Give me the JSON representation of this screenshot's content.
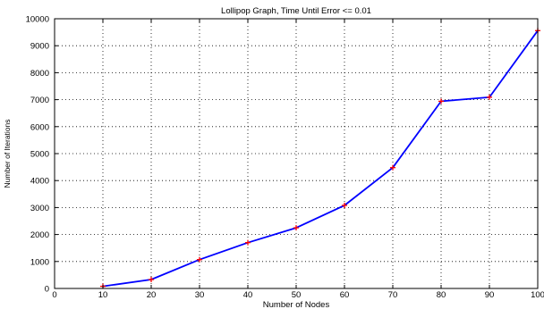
{
  "chart_data": {
    "type": "line",
    "title": "Lollipop Graph, Time Until Error <= 0.01",
    "xlabel": "Number of Nodes",
    "ylabel": "Number of Iterations",
    "xlim": [
      0,
      100
    ],
    "ylim": [
      0,
      10000
    ],
    "xticks": [
      0,
      10,
      20,
      30,
      40,
      50,
      60,
      70,
      80,
      90,
      100
    ],
    "yticks": [
      0,
      1000,
      2000,
      3000,
      4000,
      5000,
      6000,
      7000,
      8000,
      9000,
      10000
    ],
    "grid": true,
    "series": [
      {
        "x": [
          10,
          20,
          30,
          40,
          50,
          60,
          70,
          80,
          90,
          100
        ],
        "values": [
          80,
          330,
          1070,
          1700,
          2250,
          3080,
          4480,
          6940,
          7090,
          9560
        ],
        "line_color": "#0000ff",
        "marker": "plus",
        "marker_color": "#ff0000"
      }
    ]
  }
}
